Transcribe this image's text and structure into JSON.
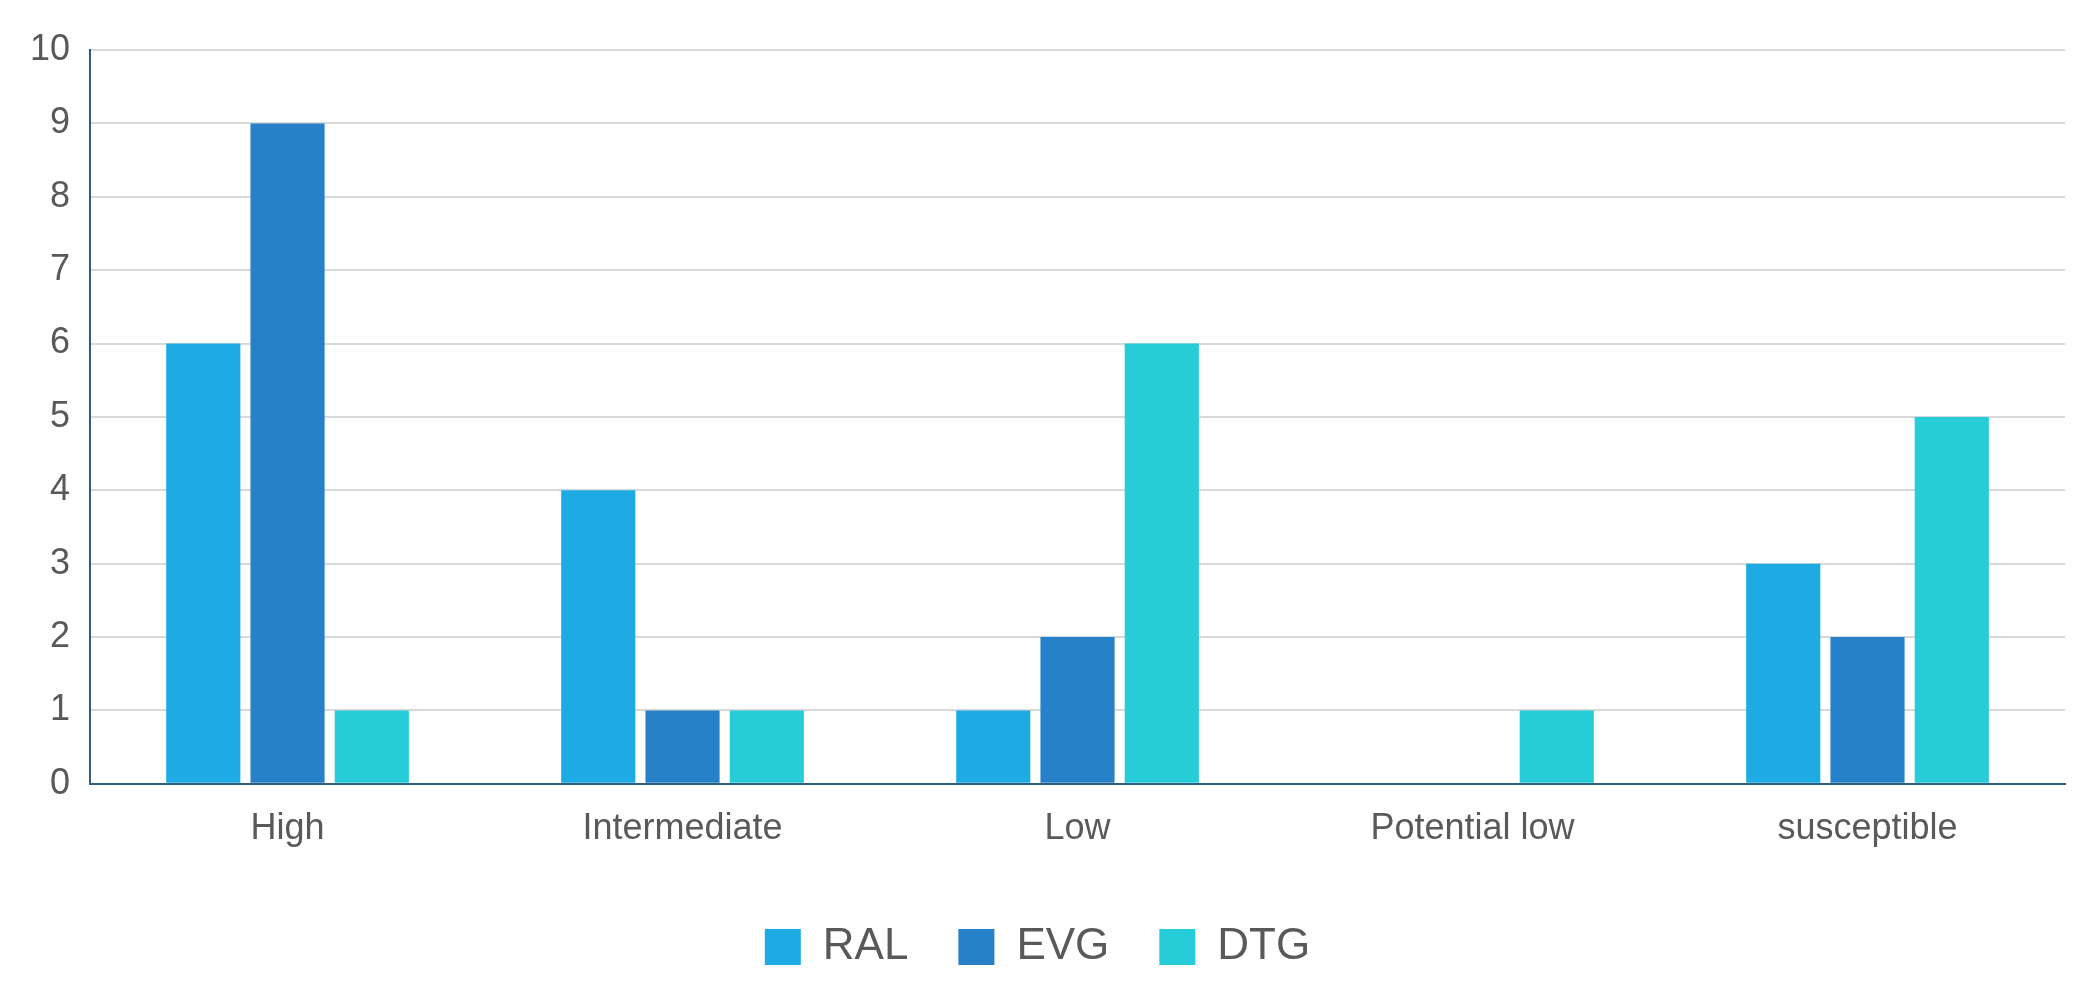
{
  "chart_data": {
    "type": "bar",
    "categories": [
      "High",
      "Intermediate",
      "Low",
      "Potential low",
      "susceptible"
    ],
    "series": [
      {
        "name": "RAL",
        "color": "#1eabe3",
        "values": [
          6,
          4,
          1,
          0,
          3
        ]
      },
      {
        "name": "EVG",
        "color": "#2781c8",
        "values": [
          9,
          1,
          2,
          0,
          2
        ]
      },
      {
        "name": "DTG",
        "color": "#26ccd8",
        "values": [
          1,
          1,
          6,
          1,
          5
        ]
      }
    ],
    "ylim": [
      0,
      10
    ],
    "yticks": [
      0,
      1,
      2,
      3,
      4,
      5,
      6,
      7,
      8,
      9,
      10
    ],
    "grid": "y",
    "legend": "bottom"
  }
}
